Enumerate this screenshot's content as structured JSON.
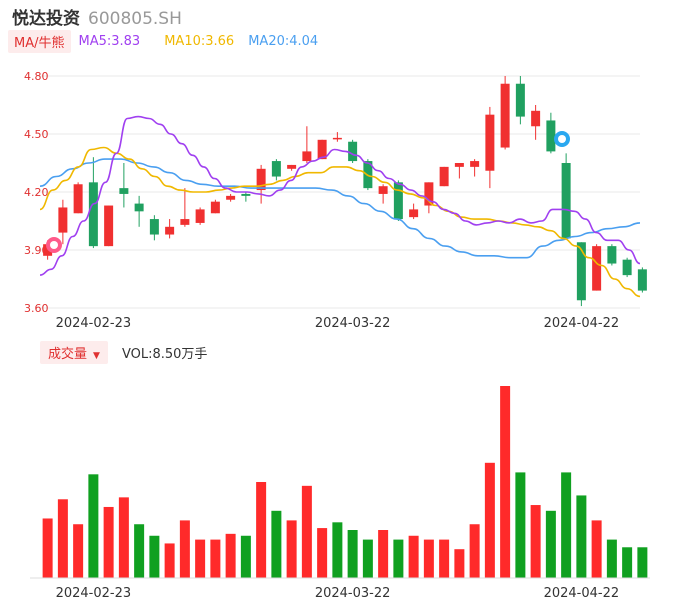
{
  "header": {
    "name": "悦达投资",
    "code": "600805.SH"
  },
  "ma": {
    "toggle_label": "MA/牛熊",
    "ma5_label": "MA5:3.83",
    "ma10_label": "MA10:3.66",
    "ma20_label": "MA20:4.04"
  },
  "volume": {
    "toggle_label": "成交量",
    "value_label": "VOL:8.50万手"
  },
  "colors": {
    "up": "#f03030",
    "down": "#20a060",
    "ma5": "#a040f0",
    "ma10": "#f0b800",
    "ma20": "#4a9ff0",
    "vol_up": "#ff2a2a",
    "vol_down": "#10a020"
  },
  "chart_data": [
    {
      "type": "candlestick",
      "y_ticks": [
        "4.80",
        "4.50",
        "4.20",
        "3.90",
        "3.60"
      ],
      "ylim": [
        3.6,
        4.8
      ],
      "x_tick_labels": [
        {
          "index": 3,
          "label": "2024-02-23"
        },
        {
          "index": 20,
          "label": "2024-03-22"
        },
        {
          "index": 35,
          "label": "2024-04-22"
        }
      ],
      "candles": [
        {
          "o": 3.87,
          "c": 3.93,
          "h": 3.95,
          "l": 3.85
        },
        {
          "o": 3.99,
          "c": 4.12,
          "h": 4.16,
          "l": 3.93
        },
        {
          "o": 4.09,
          "c": 4.24,
          "h": 4.25,
          "l": 4.09
        },
        {
          "o": 4.25,
          "c": 3.92,
          "h": 4.38,
          "l": 3.91
        },
        {
          "o": 3.92,
          "c": 4.13,
          "h": 4.13,
          "l": 3.92
        },
        {
          "o": 4.22,
          "c": 4.19,
          "h": 4.35,
          "l": 4.12
        },
        {
          "o": 4.14,
          "c": 4.1,
          "h": 4.18,
          "l": 4.02
        },
        {
          "o": 4.06,
          "c": 3.98,
          "h": 4.08,
          "l": 3.95
        },
        {
          "o": 3.98,
          "c": 4.02,
          "h": 4.06,
          "l": 3.96
        },
        {
          "o": 4.03,
          "c": 4.06,
          "h": 4.22,
          "l": 4.02
        },
        {
          "o": 4.04,
          "c": 4.11,
          "h": 4.12,
          "l": 4.03
        },
        {
          "o": 4.09,
          "c": 4.15,
          "h": 4.16,
          "l": 4.09
        },
        {
          "o": 4.16,
          "c": 4.18,
          "h": 4.19,
          "l": 4.15
        },
        {
          "o": 4.19,
          "c": 4.18,
          "h": 4.2,
          "l": 4.15
        },
        {
          "o": 4.21,
          "c": 4.32,
          "h": 4.34,
          "l": 4.14
        },
        {
          "o": 4.36,
          "c": 4.28,
          "h": 4.37,
          "l": 4.26
        },
        {
          "o": 4.32,
          "c": 4.34,
          "h": 4.34,
          "l": 4.31
        },
        {
          "o": 4.36,
          "c": 4.41,
          "h": 4.54,
          "l": 4.35
        },
        {
          "o": 4.37,
          "c": 4.47,
          "h": 4.47,
          "l": 4.37
        },
        {
          "o": 4.48,
          "c": 4.48,
          "h": 4.51,
          "l": 4.46
        },
        {
          "o": 4.46,
          "c": 4.36,
          "h": 4.47,
          "l": 4.35
        },
        {
          "o": 4.36,
          "c": 4.22,
          "h": 4.37,
          "l": 4.21
        },
        {
          "o": 4.19,
          "c": 4.23,
          "h": 4.24,
          "l": 4.14
        },
        {
          "o": 4.25,
          "c": 4.06,
          "h": 4.26,
          "l": 4.05
        },
        {
          "o": 4.07,
          "c": 4.11,
          "h": 4.14,
          "l": 4.06
        },
        {
          "o": 4.13,
          "c": 4.25,
          "h": 4.25,
          "l": 4.09
        },
        {
          "o": 4.23,
          "c": 4.33,
          "h": 4.33,
          "l": 4.23
        },
        {
          "o": 4.33,
          "c": 4.35,
          "h": 4.35,
          "l": 4.27
        },
        {
          "o": 4.33,
          "c": 4.36,
          "h": 4.37,
          "l": 4.28
        },
        {
          "o": 4.31,
          "c": 4.6,
          "h": 4.64,
          "l": 4.22
        },
        {
          "o": 4.43,
          "c": 4.76,
          "h": 4.8,
          "l": 4.42
        },
        {
          "o": 4.76,
          "c": 4.59,
          "h": 4.8,
          "l": 4.55
        },
        {
          "o": 4.54,
          "c": 4.62,
          "h": 4.65,
          "l": 4.47
        },
        {
          "o": 4.57,
          "c": 4.41,
          "h": 4.61,
          "l": 4.4
        },
        {
          "o": 4.35,
          "c": 3.96,
          "h": 4.4,
          "l": 3.96
        },
        {
          "o": 3.94,
          "c": 3.64,
          "h": 3.94,
          "l": 3.61
        },
        {
          "o": 3.69,
          "c": 3.92,
          "h": 3.93,
          "l": 3.69
        },
        {
          "o": 3.92,
          "c": 3.83,
          "h": 3.93,
          "l": 3.82
        },
        {
          "o": 3.85,
          "c": 3.77,
          "h": 3.86,
          "l": 3.76
        },
        {
          "o": 3.8,
          "c": 3.69,
          "h": 3.81,
          "l": 3.68
        }
      ],
      "ma5": [
        3.77,
        3.8,
        3.87,
        3.97,
        4.05,
        4.14,
        4.25,
        4.4,
        4.58,
        4.59,
        4.58,
        4.55,
        4.5,
        4.45,
        4.39,
        4.33,
        4.27,
        4.22,
        4.2,
        4.2,
        4.19,
        4.18,
        4.21,
        4.26,
        4.33,
        4.36,
        4.38,
        4.42,
        4.41,
        4.39,
        4.35,
        4.31,
        4.27,
        4.24,
        4.21,
        4.18,
        4.15,
        4.11,
        4.09,
        4.05,
        4.03,
        4.04,
        4.05,
        4.04,
        4.06,
        4.04,
        4.05,
        4.11,
        4.11,
        4.1,
        4.06,
        3.99,
        3.95,
        3.95,
        3.9,
        3.83
      ],
      "ma10": [
        4.11,
        4.21,
        4.26,
        4.33,
        4.42,
        4.43,
        4.4,
        4.37,
        4.32,
        4.28,
        4.23,
        4.21,
        4.2,
        4.2,
        4.21,
        4.22,
        4.23,
        4.23,
        4.24,
        4.26,
        4.28,
        4.3,
        4.3,
        4.33,
        4.33,
        4.31,
        4.28,
        4.25,
        4.21,
        4.19,
        4.17,
        4.13,
        4.1,
        4.07,
        4.06,
        4.06,
        4.05,
        4.04,
        4.03,
        4.02,
        4.0,
        3.96,
        3.92,
        3.86,
        3.82,
        3.75,
        3.7,
        3.66
      ],
      "ma20": [
        4.23,
        4.28,
        4.32,
        4.35,
        4.37,
        4.37,
        4.35,
        4.33,
        4.3,
        4.26,
        4.24,
        4.23,
        4.23,
        4.22,
        4.22,
        4.22,
        4.22,
        4.22,
        4.21,
        4.18,
        4.14,
        4.1,
        4.06,
        4.01,
        3.96,
        3.92,
        3.89,
        3.87,
        3.87,
        3.86,
        3.86,
        3.92,
        3.95,
        3.97,
        3.99,
        4.01,
        4.02,
        4.04
      ]
    },
    {
      "type": "bar",
      "series_name": "成交量",
      "ylim": [
        0,
        1.0
      ],
      "values": [
        0.31,
        0.41,
        0.28,
        0.54,
        0.37,
        0.42,
        0.28,
        0.22,
        0.18,
        0.3,
        0.2,
        0.2,
        0.23,
        0.22,
        0.5,
        0.35,
        0.3,
        0.48,
        0.26,
        0.29,
        0.25,
        0.2,
        0.25,
        0.2,
        0.22,
        0.2,
        0.2,
        0.15,
        0.28,
        0.6,
        1.0,
        0.55,
        0.38,
        0.35,
        0.55,
        0.43,
        0.3,
        0.2,
        0.16,
        0.16
      ],
      "up": [
        1,
        1,
        1,
        0,
        1,
        1,
        0,
        0,
        1,
        1,
        1,
        1,
        1,
        0,
        1,
        0,
        1,
        1,
        1,
        0,
        0,
        0,
        1,
        0,
        1,
        1,
        1,
        1,
        1,
        1,
        1,
        0,
        1,
        0,
        0,
        0,
        1,
        0,
        0,
        0
      ]
    }
  ]
}
